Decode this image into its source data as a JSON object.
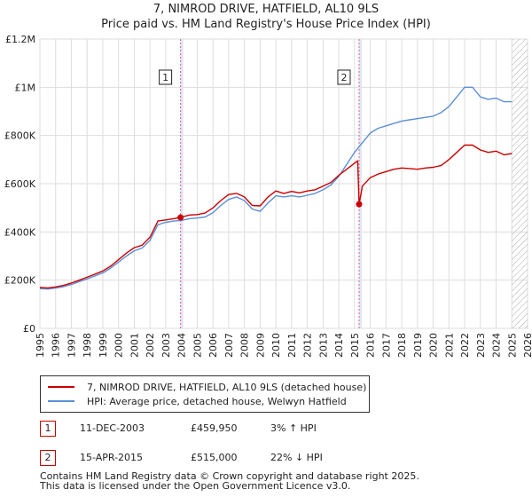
{
  "header": {
    "title": "7, NIMROD DRIVE, HATFIELD, AL10 9LS",
    "subtitle": "Price paid vs. HM Land Registry's House Price Index (HPI)"
  },
  "colors": {
    "property": "#cc0000",
    "hpi": "#5b8fd6",
    "grid": "#dddddd",
    "sale_line": "#e06080",
    "sale_band": "#dfe6f5",
    "hatch": "#aaaaaa"
  },
  "legend": {
    "property_label": "7, NIMROD DRIVE, HATFIELD, AL10 9LS (detached house)",
    "hpi_label": "HPI: Average price, detached house, Welwyn Hatfield"
  },
  "sales": [
    {
      "id": "1",
      "date": "11-DEC-2003",
      "price": "£459,950",
      "hpi_change": "3% ↑ HPI"
    },
    {
      "id": "2",
      "date": "15-APR-2015",
      "price": "£515,000",
      "hpi_change": "22% ↓ HPI"
    }
  ],
  "footer": {
    "line1": "Contains HM Land Registry data © Crown copyright and database right 2025.",
    "line2": "This data is licensed under the Open Government Licence v3.0."
  },
  "chart_data": {
    "type": "line",
    "title": "7, NIMROD DRIVE, HATFIELD, AL10 9LS",
    "subtitle": "Price paid vs. HM Land Registry's House Price Index (HPI)",
    "xlabel": "",
    "ylabel": "",
    "xlim": [
      1995,
      2026
    ],
    "ylim": [
      0,
      1200000
    ],
    "x_ticks": [
      "1995",
      "1996",
      "1997",
      "1998",
      "1999",
      "2000",
      "2001",
      "2002",
      "2003",
      "2004",
      "2005",
      "2006",
      "2007",
      "2008",
      "2009",
      "2010",
      "2011",
      "2012",
      "2013",
      "2014",
      "2015",
      "2016",
      "2017",
      "2018",
      "2019",
      "2020",
      "2021",
      "2022",
      "2023",
      "2024",
      "2025",
      "2026"
    ],
    "y_ticks": [
      {
        "value": 0,
        "label": "£0"
      },
      {
        "value": 200000,
        "label": "£200K"
      },
      {
        "value": 400000,
        "label": "£400K"
      },
      {
        "value": 600000,
        "label": "£600K"
      },
      {
        "value": 800000,
        "label": "£800K"
      },
      {
        "value": 1000000,
        "label": "£1M"
      },
      {
        "value": 1200000,
        "label": "£1.2M"
      }
    ],
    "grid": true,
    "sale_markers": [
      {
        "label": "1",
        "x": 2003.94,
        "y": 459950
      },
      {
        "label": "2",
        "x": 2015.29,
        "y": 515000
      }
    ],
    "future_hatch_from": 2025.0,
    "series": [
      {
        "name": "7, NIMROD DRIVE, HATFIELD, AL10 9LS (detached house)",
        "x": [
          1995.0,
          1995.5,
          1996.0,
          1996.5,
          1997.0,
          1997.5,
          1998.0,
          1998.5,
          1999.0,
          1999.5,
          2000.0,
          2000.5,
          2001.0,
          2001.5,
          2002.0,
          2002.5,
          2003.0,
          2003.5,
          2003.94,
          2004.5,
          2005.0,
          2005.5,
          2006.0,
          2006.5,
          2007.0,
          2007.5,
          2008.0,
          2008.5,
          2009.0,
          2009.5,
          2010.0,
          2010.5,
          2011.0,
          2011.5,
          2012.0,
          2012.5,
          2013.0,
          2013.5,
          2014.0,
          2014.5,
          2015.0,
          2015.2,
          2015.29,
          2015.5,
          2016.0,
          2016.5,
          2017.0,
          2017.5,
          2018.0,
          2018.5,
          2019.0,
          2019.5,
          2020.0,
          2020.5,
          2021.0,
          2021.5,
          2022.0,
          2022.5,
          2023.0,
          2023.5,
          2024.0,
          2024.5,
          2025.0
        ],
        "values": [
          170000,
          168000,
          172000,
          178000,
          188000,
          200000,
          212000,
          225000,
          238000,
          258000,
          285000,
          312000,
          335000,
          345000,
          378000,
          445000,
          450000,
          455000,
          459950,
          470000,
          472000,
          478000,
          500000,
          530000,
          555000,
          560000,
          545000,
          510000,
          508000,
          545000,
          570000,
          560000,
          568000,
          562000,
          570000,
          575000,
          590000,
          605000,
          635000,
          660000,
          685000,
          695000,
          515000,
          590000,
          625000,
          640000,
          650000,
          660000,
          665000,
          663000,
          660000,
          665000,
          668000,
          675000,
          700000,
          730000,
          760000,
          760000,
          740000,
          730000,
          735000,
          720000,
          725000
        ]
      },
      {
        "name": "HPI: Average price, detached house, Welwyn Hatfield",
        "x": [
          1995.0,
          1995.5,
          1996.0,
          1996.5,
          1997.0,
          1997.5,
          1998.0,
          1998.5,
          1999.0,
          1999.5,
          2000.0,
          2000.5,
          2001.0,
          2001.5,
          2002.0,
          2002.5,
          2003.0,
          2003.5,
          2004.0,
          2004.5,
          2005.0,
          2005.5,
          2006.0,
          2006.5,
          2007.0,
          2007.5,
          2008.0,
          2008.5,
          2009.0,
          2009.5,
          2010.0,
          2010.5,
          2011.0,
          2011.5,
          2012.0,
          2012.5,
          2013.0,
          2013.5,
          2014.0,
          2014.5,
          2015.0,
          2015.5,
          2016.0,
          2016.5,
          2017.0,
          2017.5,
          2018.0,
          2018.5,
          2019.0,
          2019.5,
          2020.0,
          2020.5,
          2021.0,
          2021.5,
          2022.0,
          2022.5,
          2023.0,
          2023.5,
          2024.0,
          2024.5,
          2025.0
        ],
        "values": [
          165000,
          163000,
          167000,
          173000,
          182000,
          194000,
          205000,
          218000,
          230000,
          250000,
          275000,
          300000,
          322000,
          333000,
          365000,
          430000,
          440000,
          445000,
          448000,
          455000,
          458000,
          462000,
          480000,
          510000,
          535000,
          545000,
          530000,
          495000,
          485000,
          520000,
          550000,
          545000,
          550000,
          545000,
          552000,
          560000,
          575000,
          595000,
          630000,
          680000,
          730000,
          770000,
          810000,
          830000,
          840000,
          850000,
          860000,
          865000,
          870000,
          875000,
          880000,
          895000,
          920000,
          960000,
          1000000,
          1000000,
          960000,
          950000,
          955000,
          940000,
          940000
        ]
      }
    ]
  }
}
